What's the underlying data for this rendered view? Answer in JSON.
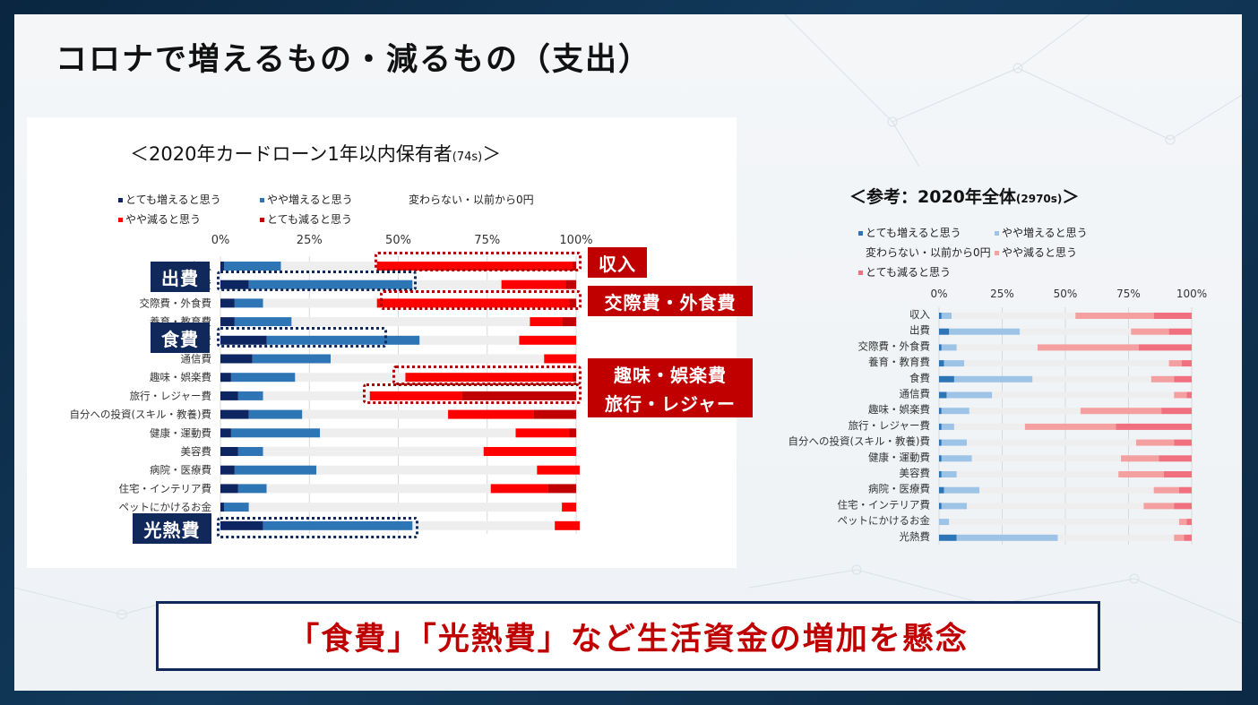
{
  "title": "コロナで増えるもの・減るもの（支出）",
  "conclusion": "「食費」「光熱費」など生活資金の増加を懸念",
  "colors": {
    "left": [
      "#0d2560",
      "#2e75b6",
      "#eeeeee",
      "#ff0000",
      "#c00000"
    ],
    "right": [
      "#2e75b6",
      "#9dc3e6",
      "#eeeeee",
      "#f4a0a0",
      "#f07080"
    ],
    "accent_red": "#c00000",
    "accent_navy": "#10285a"
  },
  "callouts": {
    "income": "収入",
    "expense": "出費",
    "social": "交際費・外食費",
    "food": "食費",
    "hobby": "趣味・娯楽費",
    "travel": "旅行・レジャー",
    "utility": "光熱費"
  },
  "chart_data": [
    {
      "type": "bar",
      "stacked": true,
      "orientation": "horizontal",
      "title": "＜2020年カードローン1年以内保有者",
      "title_suffix": "(74s)",
      "title_close": "＞",
      "x_ticks": [
        "0%",
        "25%",
        "50%",
        "75%",
        "100%"
      ],
      "xlim": [
        0,
        100
      ],
      "categories": [
        "収入",
        "出費",
        "交際費・外食費",
        "養育・教育費",
        "食費",
        "通信費",
        "趣味・娯楽費",
        "旅行・レジャー費",
        "自分への投資(スキル・教養)費",
        "健康・運動費",
        "美容費",
        "病院・医療費",
        "住宅・インテリア費",
        "ペットにかけるお金",
        "光熱費"
      ],
      "series": [
        {
          "name": "とても増えると思う",
          "values": [
            1,
            8,
            4,
            4,
            13,
            9,
            3,
            5,
            8,
            3,
            5,
            4,
            5,
            1,
            12
          ]
        },
        {
          "name": "やや増えると思う",
          "values": [
            16,
            46,
            8,
            16,
            43,
            22,
            18,
            7,
            15,
            25,
            7,
            23,
            8,
            7,
            42
          ]
        },
        {
          "name": "変わらない・以前から0円",
          "values": [
            27,
            25,
            32,
            67,
            28,
            60,
            31,
            30,
            41,
            55,
            62,
            62,
            63,
            88,
            40
          ]
        },
        {
          "name": "やや減ると思う",
          "values": [
            55,
            18,
            54,
            9,
            16,
            9,
            47,
            26,
            24,
            15,
            26,
            12,
            16,
            4,
            7
          ]
        },
        {
          "name": "とても減ると思う",
          "values": [
            1,
            3,
            2,
            4,
            0,
            0,
            1,
            32,
            12,
            2,
            0,
            0,
            8,
            0,
            0
          ]
        }
      ]
    },
    {
      "type": "bar",
      "stacked": true,
      "orientation": "horizontal",
      "title": "＜参考：2020年全体",
      "title_suffix": "(2970s)",
      "title_close": "＞",
      "x_ticks": [
        "0%",
        "25%",
        "50%",
        "75%",
        "100%"
      ],
      "xlim": [
        0,
        100
      ],
      "categories": [
        "収入",
        "出費",
        "交際費・外食費",
        "養育・教育費",
        "食費",
        "通信費",
        "趣味・娯楽費",
        "旅行・レジャー費",
        "自分への投資(スキル・教養)費",
        "健康・運動費",
        "美容費",
        "病院・医療費",
        "住宅・インテリア費",
        "ペットにかけるお金",
        "光熱費"
      ],
      "series": [
        {
          "name": "とても増えると思う",
          "values": [
            1,
            4,
            1,
            2,
            6,
            3,
            1,
            1,
            1,
            1,
            1,
            2,
            1,
            0,
            7
          ]
        },
        {
          "name": "やや増えると思う",
          "values": [
            4,
            28,
            6,
            8,
            31,
            18,
            11,
            5,
            10,
            12,
            6,
            14,
            10,
            4,
            40
          ]
        },
        {
          "name": "変わらない・以前から0円",
          "values": [
            49,
            44,
            32,
            81,
            47,
            72,
            44,
            28,
            67,
            59,
            64,
            69,
            70,
            91,
            46
          ]
        },
        {
          "name": "やや減ると思う",
          "values": [
            31,
            15,
            40,
            5,
            9,
            5,
            32,
            36,
            15,
            15,
            18,
            10,
            12,
            3,
            4
          ]
        },
        {
          "name": "とても減ると思う",
          "values": [
            15,
            9,
            21,
            4,
            7,
            2,
            12,
            30,
            7,
            13,
            11,
            5,
            7,
            2,
            3
          ]
        }
      ]
    }
  ]
}
